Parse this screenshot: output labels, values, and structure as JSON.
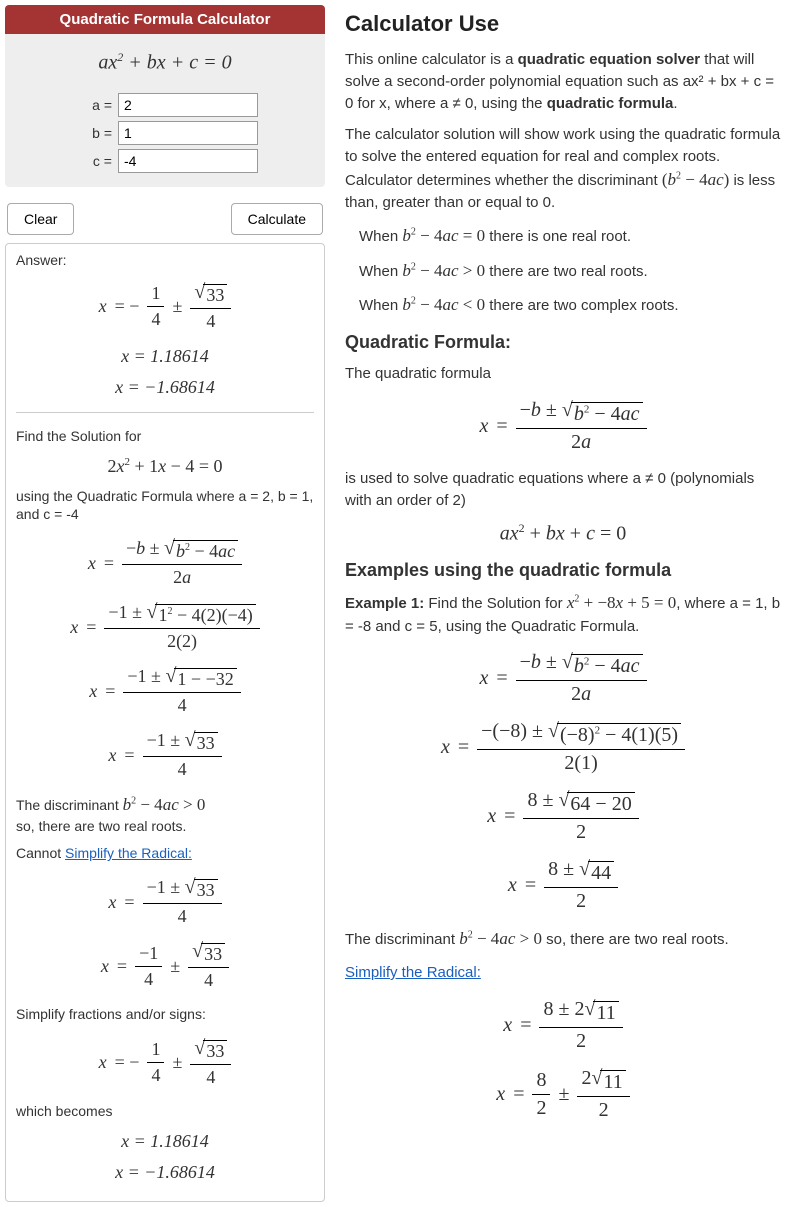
{
  "calculator": {
    "title": "Quadratic Formula Calculator",
    "equation_html": "ax² + bx + c = 0",
    "inputs": {
      "a_label": "a =",
      "a_value": "2",
      "b_label": "b =",
      "b_value": "1",
      "c_label": "c =",
      "c_value": "-4"
    },
    "buttons": {
      "clear": "Clear",
      "calculate": "Calculate"
    }
  },
  "answer": {
    "label": "Answer:",
    "root1": "x = 1.18614",
    "root2": "x = −1.68614",
    "find_solution": "Find the Solution for",
    "equation": "2x² + 1x − 4 = 0",
    "using": "using the Quadratic Formula where a = 2, b = 1, and c = -4",
    "discriminant_text_pre": "The discriminant ",
    "discriminant_math": "b² − 4ac > 0",
    "discriminant_text_post": "so, there are two real roots.",
    "cannot_simplify_pre": "Cannot ",
    "cannot_simplify_link": "Simplify the Radical:",
    "simplify_fractions": "Simplify fractions and/or signs:",
    "which_becomes": "which becomes",
    "root1b": "x = 1.18614",
    "root2b": "x = −1.68614"
  },
  "right": {
    "h_use": "Calculator Use",
    "p1_a": "This online calculator is a ",
    "p1_b": "quadratic equation solver",
    "p1_c": " that will solve a second-order polynomial equation such as ax² + bx + c = 0 for x, where a ≠ 0, using the ",
    "p1_d": "quadratic formula",
    "p1_e": ".",
    "p2_a": "The calculator solution will show work using the quadratic formula to solve the entered equation for real and complex roots. Calculator determines whether the discriminant ",
    "p2_math": "(b² − 4ac)",
    "p2_b": " is less than, greater than or equal to 0.",
    "when0_a": "When ",
    "when0_m": "b² − 4ac = 0",
    "when0_b": " there is one real root.",
    "whengt_a": "When ",
    "whengt_m": "b² − 4ac > 0",
    "whengt_b": " there are two real roots.",
    "whenlt_a": "When ",
    "whenlt_m": "b² − 4ac < 0",
    "whenlt_b": " there are two complex roots.",
    "h_qf": "Quadratic Formula:",
    "qf_intro": "The quadratic formula",
    "qf_used": "is used to solve quadratic equations where a ≠ 0 (polynomials with an order of 2)",
    "qf_eq": "ax² + bx + c = 0",
    "h_ex": "Examples using the quadratic formula",
    "ex1_a": "Example 1:",
    "ex1_b": " Find the Solution for ",
    "ex1_m": "x² + −8x + 5 = 0",
    "ex1_c": ", where a = 1, b = -8 and c = 5, using the Quadratic Formula.",
    "ex1_disc_a": "The discriminant ",
    "ex1_disc_m": "b² − 4ac > 0",
    "ex1_disc_b": " so, there are two real roots.",
    "simplify_link": "Simplify the Radical:"
  }
}
